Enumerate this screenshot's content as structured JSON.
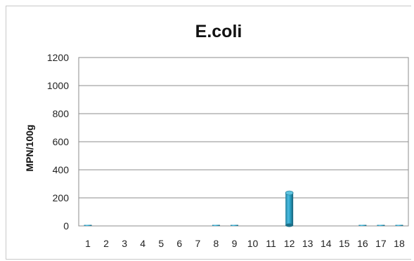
{
  "chart_data": {
    "type": "bar",
    "title": "E.coli",
    "xlabel": "",
    "ylabel": "MPN/100g",
    "ylim": [
      0,
      1200
    ],
    "yticks": [
      0,
      200,
      400,
      600,
      800,
      1000,
      1200
    ],
    "grid": true,
    "categories": [
      "1",
      "2",
      "3",
      "4",
      "5",
      "6",
      "7",
      "8",
      "9",
      "10",
      "11",
      "12",
      "13",
      "14",
      "15",
      "16",
      "17",
      "18"
    ],
    "values": [
      3,
      0,
      0,
      0,
      0,
      0,
      0,
      3,
      3,
      0,
      0,
      240,
      0,
      0,
      0,
      3,
      3,
      3
    ],
    "colors": {
      "bar_main": "#2aa3c6",
      "bar_dark": "#1c6f88",
      "bar_light": "#5fc4e0",
      "grid": "#8c8c8c",
      "axis": "#8c8c8c"
    }
  }
}
